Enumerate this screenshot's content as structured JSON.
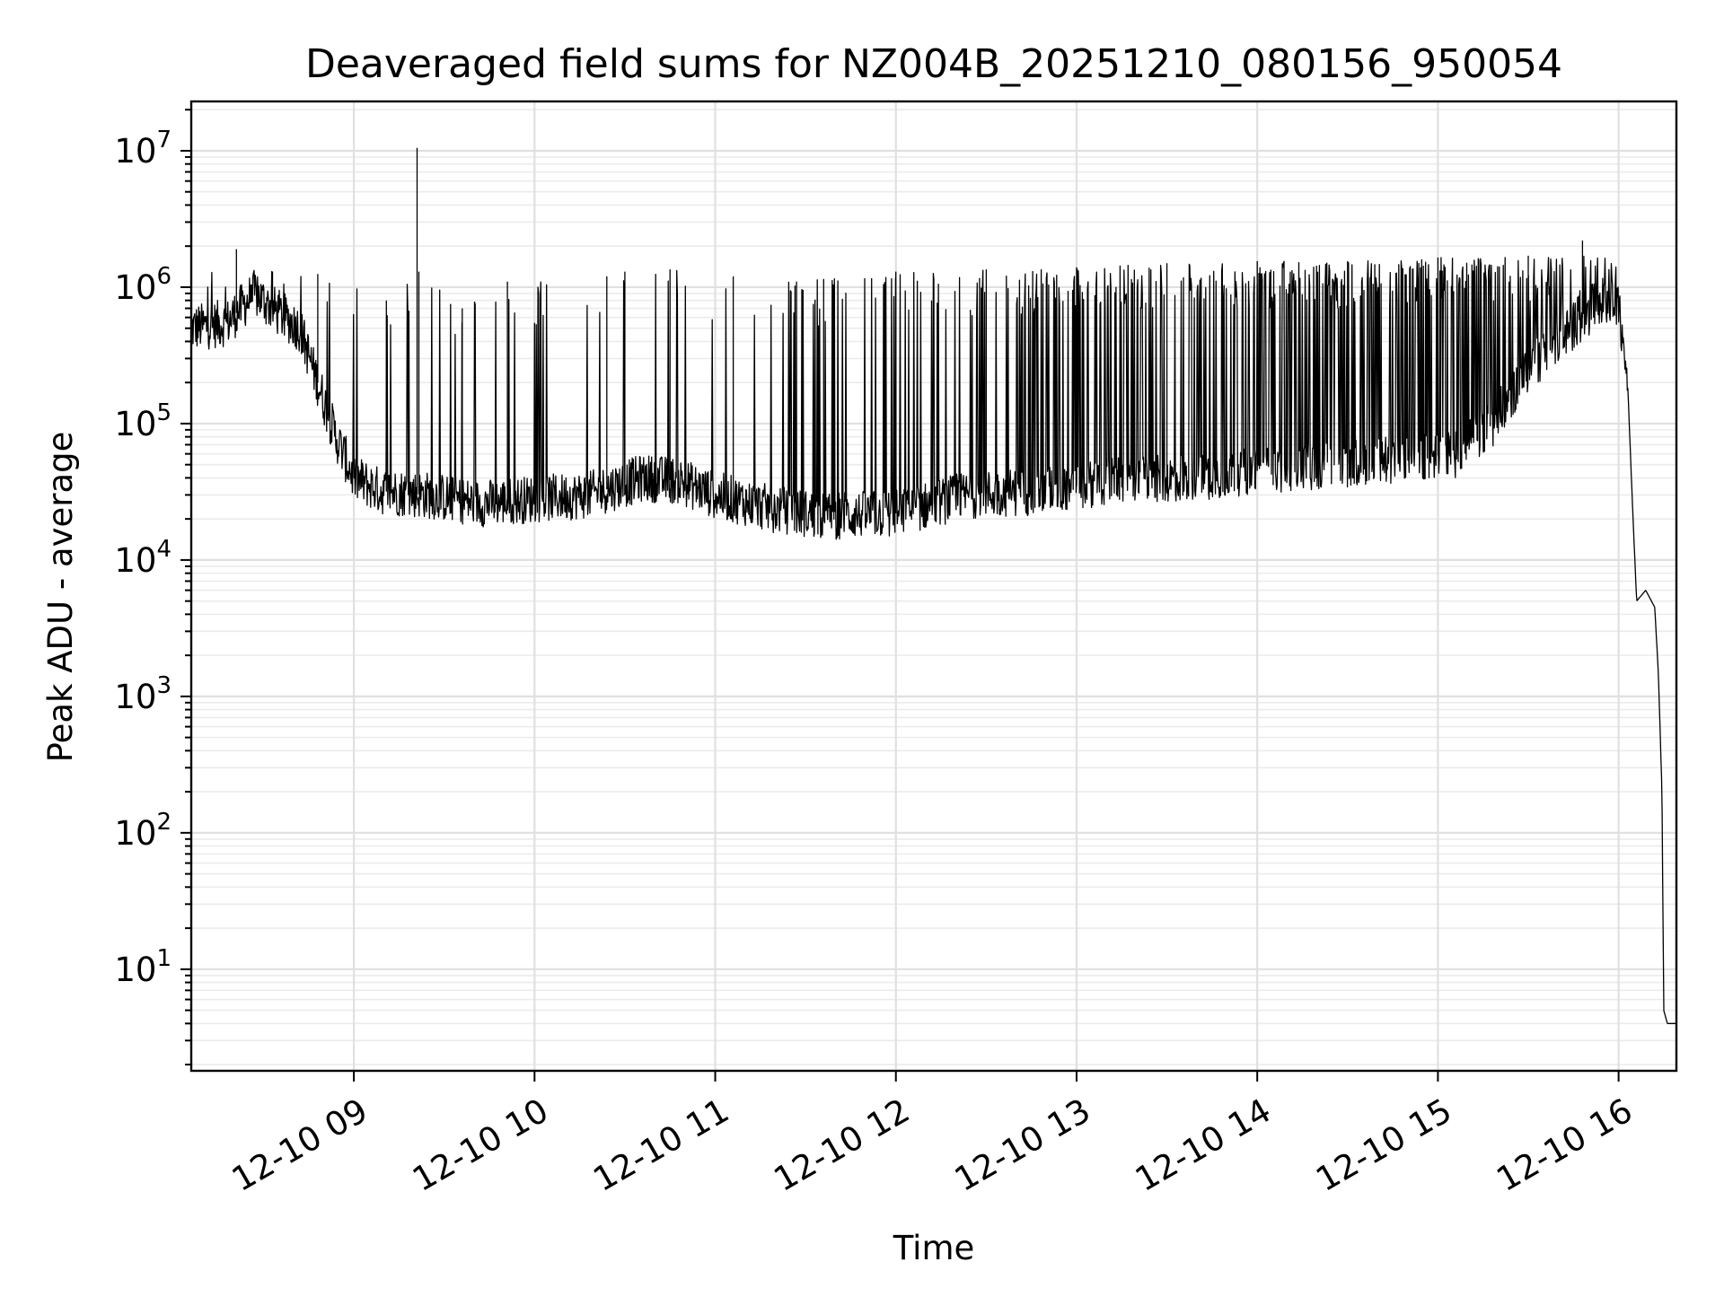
{
  "chart_data": {
    "type": "line",
    "title": "Deaveraged field sums for NZ004B_20251210_080156_950054",
    "xlabel": "Time",
    "ylabel": "Peak ADU - average",
    "yscale": "log",
    "ylim": [
      1.8,
      23000000
    ],
    "xlim_hours": [
      8.1,
      16.32
    ],
    "grid": true,
    "x_ticks": [
      {
        "hour": 9,
        "label": "12-10 09"
      },
      {
        "hour": 10,
        "label": "12-10 10"
      },
      {
        "hour": 11,
        "label": "12-10 11"
      },
      {
        "hour": 12,
        "label": "12-10 12"
      },
      {
        "hour": 13,
        "label": "12-10 13"
      },
      {
        "hour": 14,
        "label": "12-10 14"
      },
      {
        "hour": 15,
        "label": "12-10 15"
      },
      {
        "hour": 16,
        "label": "12-10 16"
      }
    ],
    "y_ticks": [
      {
        "value": 10,
        "base": "10",
        "exp": "1"
      },
      {
        "value": 100,
        "base": "10",
        "exp": "2"
      },
      {
        "value": 1000,
        "base": "10",
        "exp": "3"
      },
      {
        "value": 10000,
        "base": "10",
        "exp": "4"
      },
      {
        "value": 100000,
        "base": "10",
        "exp": "5"
      },
      {
        "value": 1000000,
        "base": "10",
        "exp": "6"
      },
      {
        "value": 10000000,
        "base": "10",
        "exp": "7"
      }
    ],
    "series": [
      {
        "name": "Peak ADU - average",
        "color": "#000000",
        "note": "dense noisy baseline with frequent upward spikes; spikes share the line path",
        "baseline": [
          [
            8.1,
            500000
          ],
          [
            8.3,
            550000
          ],
          [
            8.45,
            900000
          ],
          [
            8.55,
            700000
          ],
          [
            8.7,
            500000
          ],
          [
            8.8,
            200000
          ],
          [
            8.9,
            80000
          ],
          [
            9.0,
            40000
          ],
          [
            9.15,
            32000
          ],
          [
            9.4,
            30000
          ],
          [
            9.7,
            26000
          ],
          [
            10.0,
            28000
          ],
          [
            10.3,
            30000
          ],
          [
            10.6,
            40000
          ],
          [
            10.8,
            38000
          ],
          [
            11.0,
            30000
          ],
          [
            11.3,
            24000
          ],
          [
            11.6,
            21000
          ],
          [
            12.0,
            22000
          ],
          [
            12.4,
            30000
          ],
          [
            12.8,
            32000
          ],
          [
            13.2,
            38000
          ],
          [
            13.6,
            40000
          ],
          [
            14.0,
            45000
          ],
          [
            14.4,
            50000
          ],
          [
            14.8,
            55000
          ],
          [
            15.1,
            60000
          ],
          [
            15.3,
            100000
          ],
          [
            15.5,
            250000
          ],
          [
            15.7,
            450000
          ],
          [
            15.9,
            800000
          ],
          [
            16.0,
            700000
          ],
          [
            16.05,
            200000
          ],
          [
            16.08,
            20000
          ],
          [
            16.1,
            5000
          ],
          [
            16.15,
            6000
          ],
          [
            16.2,
            4500
          ],
          [
            16.22,
            1500
          ],
          [
            16.24,
            200
          ],
          [
            16.25,
            5
          ],
          [
            16.27,
            4
          ],
          [
            16.32,
            4
          ]
        ],
        "spike_peaks": [
          [
            8.35,
            1900000
          ],
          [
            8.55,
            1300000
          ],
          [
            8.8,
            1250000
          ],
          [
            9.18,
            800000
          ],
          [
            9.35,
            10500000
          ],
          [
            9.36,
            1300000
          ],
          [
            9.6,
            700000
          ],
          [
            9.85,
            1100000
          ],
          [
            10.4,
            1200000
          ],
          [
            10.5,
            1300000
          ],
          [
            10.75,
            1350000
          ],
          [
            11.1,
            1200000
          ],
          [
            11.45,
            1100000
          ],
          [
            11.6,
            1150000
          ],
          [
            12.0,
            1300000
          ],
          [
            12.5,
            1350000
          ],
          [
            13.0,
            1400000
          ],
          [
            13.5,
            1500000
          ],
          [
            14.0,
            1550000
          ],
          [
            14.5,
            1550000
          ],
          [
            15.0,
            1650000
          ],
          [
            15.5,
            1700000
          ],
          [
            15.8,
            2200000
          ]
        ]
      }
    ]
  }
}
